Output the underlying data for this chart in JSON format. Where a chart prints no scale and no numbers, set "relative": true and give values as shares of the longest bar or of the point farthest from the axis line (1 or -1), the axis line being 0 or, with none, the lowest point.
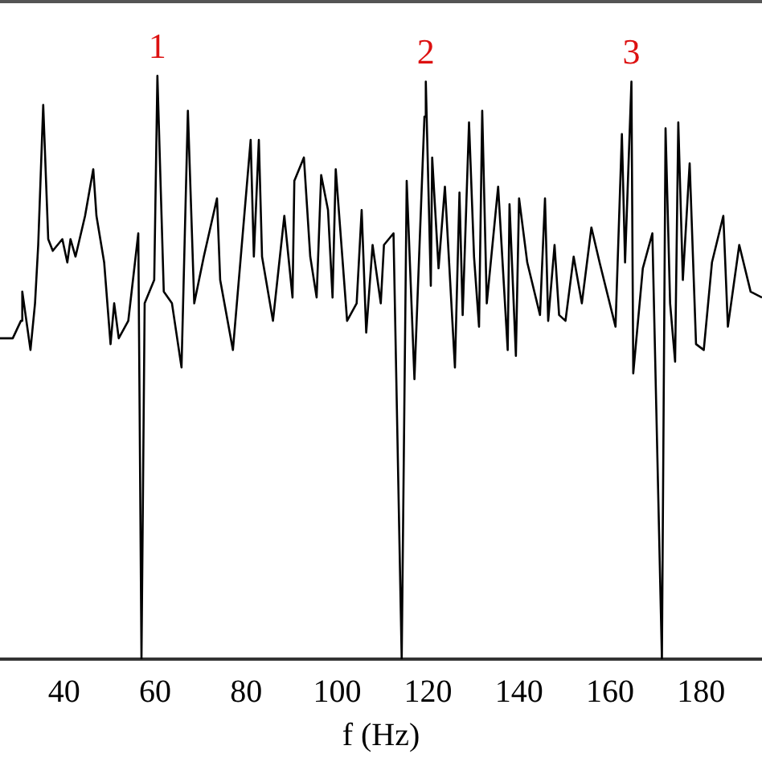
{
  "chart_data": {
    "type": "line",
    "relative": true,
    "xlabel": "f (Hz)",
    "xlim": [
      25.9,
      193.4
    ],
    "xticks": [
      40,
      60,
      80,
      100,
      120,
      140,
      160,
      180
    ],
    "tick_labels": "x",
    "grid": false,
    "legend": false,
    "marker": "none",
    "line_style": "solid",
    "series": [
      {
        "color": "#000000",
        "x": [
          25.9,
          28.7,
          30.5,
          30.8,
          32.6,
          33.6,
          34.3,
          35.4,
          36.5,
          37.5,
          39.6,
          40.7,
          41.4,
          42.5,
          44.6,
          46.4,
          47.1,
          48.8,
          50.2,
          51.0,
          52.0,
          54.1,
          56.3,
          57.0,
          57.7,
          59.8,
          60.5,
          61.9,
          63.7,
          65.8,
          67.2,
          68.6,
          70.7,
          73.6,
          74.3,
          77.1,
          81.0,
          81.7,
          82.8,
          83.5,
          85.9,
          88.4,
          90.2,
          90.6,
          92.7,
          94.1,
          95.5,
          96.5,
          98.0,
          99.0,
          99.7,
          102.2,
          104.3,
          105.4,
          106.4,
          107.8,
          109.6,
          110.3,
          112.4,
          114.2,
          115.3,
          117.0,
          119.2,
          119.5,
          120.6,
          120.9,
          122.3,
          123.7,
          125.9,
          126.9,
          127.6,
          129.0,
          130.1,
          131.2,
          131.9,
          132.9,
          135.4,
          137.5,
          137.9,
          139.3,
          140.0,
          141.8,
          144.6,
          145.7,
          146.4,
          147.8,
          148.8,
          150.2,
          152.0,
          153.8,
          155.9,
          157.7,
          161.2,
          162.6,
          163.3,
          164.7,
          165.1,
          167.2,
          169.3,
          171.4,
          172.2,
          173.2,
          174.3,
          175.0,
          176.0,
          177.5,
          178.9,
          180.6,
          182.4,
          184.9,
          185.9,
          188.4,
          190.9,
          193.4
        ],
        "values": [
          0.55,
          0.55,
          0.58,
          0.63,
          0.53,
          0.61,
          0.71,
          0.95,
          0.72,
          0.7,
          0.72,
          0.68,
          0.72,
          0.69,
          0.76,
          0.84,
          0.76,
          0.68,
          0.54,
          0.61,
          0.55,
          0.58,
          0.73,
          0,
          0.61,
          0.65,
          1,
          0.63,
          0.61,
          0.5,
          0.94,
          0.61,
          0.69,
          0.79,
          0.65,
          0.53,
          0.89,
          0.69,
          0.89,
          0.69,
          0.58,
          0.76,
          0.62,
          0.82,
          0.86,
          0.69,
          0.62,
          0.83,
          0.77,
          0.62,
          0.84,
          0.58,
          0.61,
          0.77,
          0.56,
          0.71,
          0.61,
          0.71,
          0.73,
          0,
          0.82,
          0.48,
          0.93,
          0.99,
          0.64,
          0.86,
          0.67,
          0.81,
          0.5,
          0.8,
          0.59,
          0.92,
          0.69,
          0.57,
          0.94,
          0.61,
          0.81,
          0.53,
          0.78,
          0.52,
          0.79,
          0.68,
          0.59,
          0.79,
          0.58,
          0.71,
          0.59,
          0.58,
          0.69,
          0.61,
          0.74,
          0.68,
          0.57,
          0.9,
          0.68,
          0.99,
          0.49,
          0.67,
          0.73,
          0,
          0.91,
          0.61,
          0.51,
          0.92,
          0.65,
          0.85,
          0.54,
          0.53,
          0.68,
          0.76,
          0.57,
          0.71,
          0.63,
          0.62
        ]
      }
    ],
    "annotations": [
      {
        "text": "1",
        "x": 60.5,
        "y": 1
      },
      {
        "text": "2",
        "x": 119.5,
        "y": 0.99
      },
      {
        "text": "3",
        "x": 164.7,
        "y": 0.99
      }
    ]
  }
}
